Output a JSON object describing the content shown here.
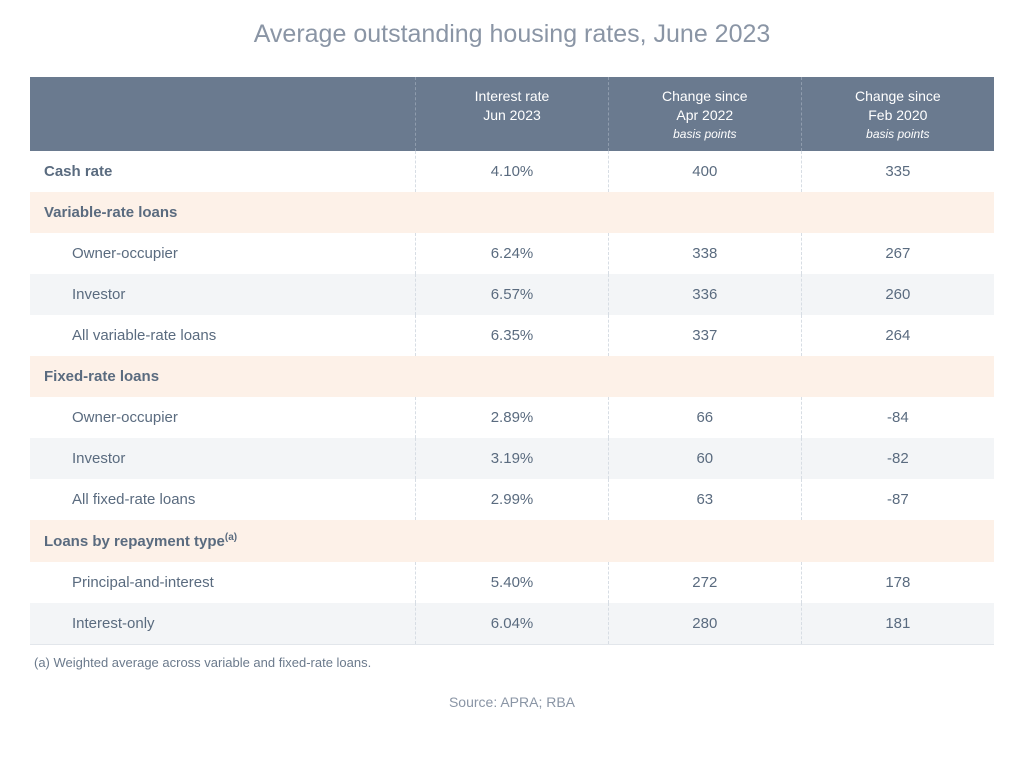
{
  "title": "Average outstanding housing rates, June 2023",
  "columns": [
    {
      "line1": "Interest rate",
      "line2": "Jun 2023",
      "sub": ""
    },
    {
      "line1": "Change since",
      "line2": "Apr 2022",
      "sub": "basis points"
    },
    {
      "line1": "Change since",
      "line2": "Feb 2020",
      "sub": "basis points"
    }
  ],
  "rows": [
    {
      "type": "data",
      "bold": true,
      "alt": false,
      "label": "Cash rate",
      "c1": "4.10%",
      "c2": "400",
      "c3": "335"
    },
    {
      "type": "section",
      "label": "Variable-rate loans"
    },
    {
      "type": "data",
      "indent": true,
      "alt": false,
      "label": "Owner-occupier",
      "c1": "6.24%",
      "c2": "338",
      "c3": "267"
    },
    {
      "type": "data",
      "indent": true,
      "alt": true,
      "label": "Investor",
      "c1": "6.57%",
      "c2": "336",
      "c3": "260"
    },
    {
      "type": "data",
      "indent": true,
      "alt": false,
      "label": "All variable-rate loans",
      "c1": "6.35%",
      "c2": "337",
      "c3": "264"
    },
    {
      "type": "section",
      "label": "Fixed-rate loans"
    },
    {
      "type": "data",
      "indent": true,
      "alt": false,
      "label": "Owner-occupier",
      "c1": "2.89%",
      "c2": "66",
      "c3": "-84"
    },
    {
      "type": "data",
      "indent": true,
      "alt": true,
      "label": "Investor",
      "c1": "3.19%",
      "c2": "60",
      "c3": "-82"
    },
    {
      "type": "data",
      "indent": true,
      "alt": false,
      "label": "All fixed-rate loans",
      "c1": "2.99%",
      "c2": "63",
      "c3": "-87"
    },
    {
      "type": "section",
      "label": "Loans by repayment type",
      "sup": "(a)"
    },
    {
      "type": "data",
      "indent": true,
      "alt": false,
      "label": "Principal-and-interest",
      "c1": "5.40%",
      "c2": "272",
      "c3": "178"
    },
    {
      "type": "data",
      "indent": true,
      "alt": true,
      "label": "Interest-only",
      "c1": "6.04%",
      "c2": "280",
      "c3": "181"
    }
  ],
  "footnote": "(a) Weighted average across variable and fixed-rate loans.",
  "source": "Source: APRA; RBA",
  "style": {
    "type": "table",
    "header_bg": "#6a7a8f",
    "header_text": "#ffffff",
    "section_bg": "#fdf1e8",
    "alt_row_bg": "#f3f5f7",
    "text_color": "#5a6b7f",
    "muted_text": "#8a95a5",
    "border_dash_color": "#d7dde4",
    "title_fontsize": 25,
    "body_fontsize": 15,
    "col_widths_pct": [
      40,
      20,
      20,
      20
    ]
  }
}
